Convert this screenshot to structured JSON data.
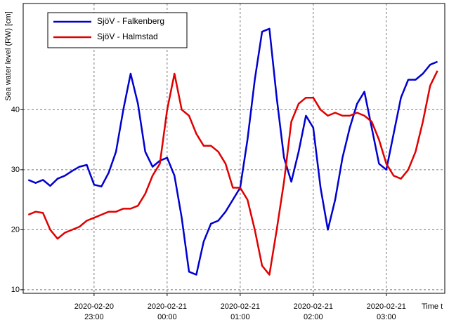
{
  "chart_data": {
    "type": "line",
    "y_label": "Sea water level (RW) [cm]",
    "x_label": "Time t",
    "x": [
      22.1,
      22.2,
      22.3,
      22.4,
      22.5,
      22.6,
      22.7,
      22.8,
      22.9,
      23.0,
      23.1,
      23.2,
      23.3,
      23.4,
      23.5,
      23.6,
      23.7,
      23.8,
      23.9,
      24.0,
      24.1,
      24.2,
      24.3,
      24.4,
      24.5,
      24.6,
      24.7,
      24.8,
      24.9,
      25.0,
      25.1,
      25.2,
      25.3,
      25.4,
      25.5,
      25.6,
      25.7,
      25.8,
      25.9,
      26.0,
      26.1,
      26.2,
      26.3,
      26.4,
      26.5,
      26.6,
      26.7,
      26.8,
      26.9,
      27.0,
      27.1,
      27.2,
      27.3,
      27.4,
      27.5,
      27.6,
      27.7
    ],
    "series": [
      {
        "name": "SjöV - Falkenberg",
        "color": "#0000d0",
        "values": [
          28.3,
          27.8,
          28.3,
          27.3,
          28.5,
          29,
          29.8,
          30.5,
          30.8,
          27.5,
          27.2,
          29.5,
          33,
          40,
          46,
          41,
          33,
          30.5,
          31.5,
          32,
          29,
          22,
          13,
          12.5,
          18,
          21,
          21.5,
          23,
          25,
          27,
          35,
          45,
          53,
          53.5,
          42,
          32,
          28,
          33,
          39,
          37,
          27,
          20,
          25,
          32,
          37,
          41,
          43,
          37,
          31,
          30,
          36,
          42,
          45,
          45,
          46,
          47.5,
          48
        ]
      },
      {
        "name": "SjöV - Halmstad",
        "color": "#e00000",
        "values": [
          22.5,
          23,
          22.8,
          20,
          18.5,
          19.5,
          20,
          20.5,
          21.5,
          22,
          22.5,
          23,
          23,
          23.5,
          23.5,
          24,
          26,
          29,
          31,
          40,
          46,
          40,
          39,
          36,
          34,
          34,
          33,
          31,
          27,
          27,
          25,
          20,
          14,
          12.5,
          20,
          28,
          38,
          41,
          42,
          42,
          40,
          39,
          39.5,
          39,
          39,
          39.5,
          39,
          38,
          35,
          31,
          29,
          28.5,
          30,
          33,
          38,
          44,
          46.5
        ]
      }
    ],
    "xlim": [
      22.03,
      27.8
    ],
    "xticks": [
      {
        "value": 23,
        "label": [
          "2020-02-20",
          "23:00"
        ]
      },
      {
        "value": 24,
        "label": [
          "2020-02-21",
          "00:00"
        ]
      },
      {
        "value": 25,
        "label": [
          "2020-02-21",
          "01:00"
        ]
      },
      {
        "value": 26,
        "label": [
          "2020-02-21",
          "02:00"
        ]
      },
      {
        "value": 27,
        "label": [
          "2020-02-21",
          "03:00"
        ]
      }
    ],
    "ylim": [
      9.4,
      57.7
    ],
    "yticks": [
      10,
      20,
      30,
      40
    ],
    "grid": true,
    "legend": "top-left"
  }
}
